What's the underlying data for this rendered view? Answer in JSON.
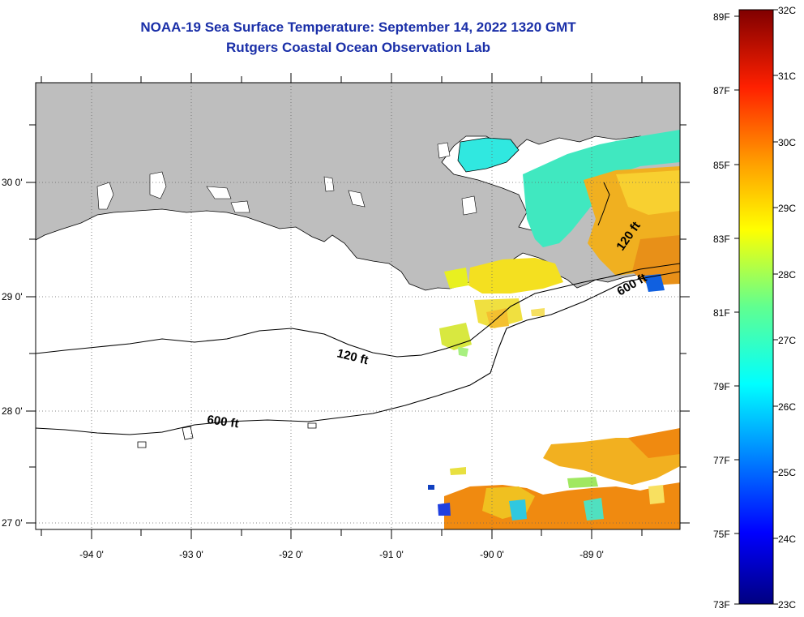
{
  "title": {
    "line1": "NOAA-19 Sea Surface Temperature:  September 14, 2022 1320 GMT",
    "line2": "Rutgers Coastal Ocean Observation Lab"
  },
  "map": {
    "lon_labels": [
      "-94 0'",
      "-93 0'",
      "-92 0'",
      "-91 0'",
      "-90 0'",
      "-89 0'"
    ],
    "lat_labels": [
      "30 0'",
      "29 0'",
      "28 0'",
      "27 0'"
    ],
    "contour_labels": [
      "120 ft",
      "600 ft",
      "120 ft",
      "600 ft"
    ],
    "colors": {
      "land": "#bebebe",
      "ocean_nodata": "#ffffff",
      "title": "#1a2fa8"
    }
  },
  "colorbar": {
    "fahrenheit": [
      "89F",
      "87F",
      "85F",
      "83F",
      "81F",
      "79F",
      "77F",
      "75F",
      "73F"
    ],
    "celsius": [
      "32C",
      "31C",
      "30C",
      "29C",
      "28C",
      "27C",
      "26C",
      "25C",
      "24C",
      "23C"
    ]
  }
}
